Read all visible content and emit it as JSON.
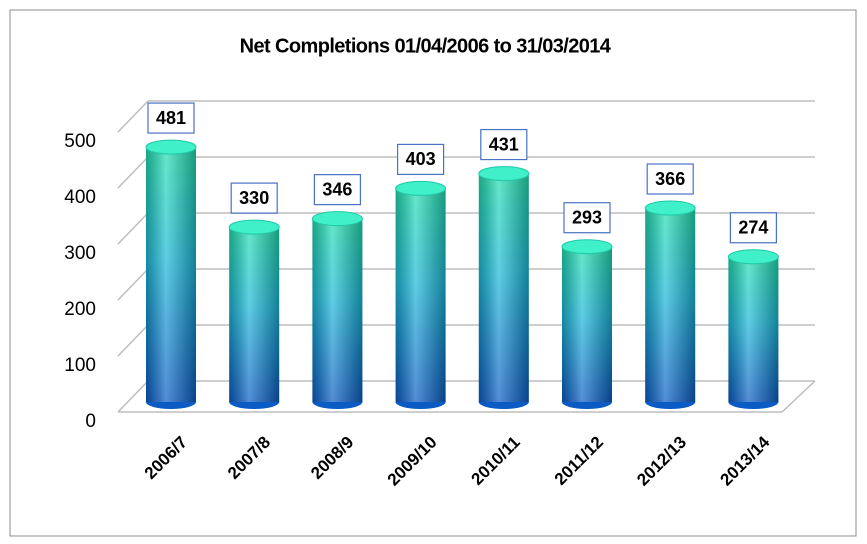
{
  "chart_data": {
    "type": "bar",
    "title": "Net Completions 01/04/2006  to 31/03/2014",
    "categories": [
      "2006/7",
      "2007/8",
      "2008/9",
      "2009/10",
      "2010/11",
      "2011/12",
      "2012/13",
      "2013/14"
    ],
    "values": [
      481,
      330,
      346,
      403,
      431,
      293,
      366,
      274
    ],
    "color": "#1a9ad8",
    "ylim": [
      0,
      500
    ],
    "yticks": [
      0,
      100,
      200,
      300,
      400,
      500
    ],
    "grid": true
  }
}
